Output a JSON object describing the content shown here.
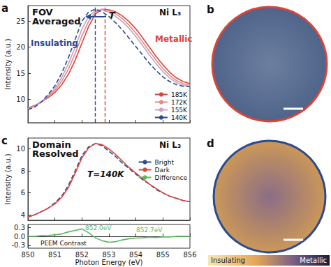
{
  "chart_data": [
    {
      "type": "line",
      "title": "a",
      "ylabel": "Intensity (a.u.)",
      "x": [
        850,
        850.25,
        850.5,
        850.75,
        851,
        851.25,
        851.5,
        851.75,
        852,
        852.25,
        852.5,
        852.75,
        853,
        853.25,
        853.5,
        853.75,
        854,
        854.25,
        854.5,
        854.75,
        855,
        855.25,
        855.5,
        855.75,
        856
      ],
      "xlim": [
        850,
        856
      ],
      "xticks": [
        850,
        851,
        852,
        853,
        854,
        855,
        856
      ],
      "ylim": [
        5.5,
        28
      ],
      "yticks": [
        10,
        15,
        20,
        25
      ],
      "tick_labels": "y",
      "grid": false,
      "legend": "lower right",
      "series": [
        {
          "name": "185K",
          "color": "#d9453a",
          "line_style": "solid",
          "values": [
            8.3,
            8.8,
            9.5,
            10.3,
            11.3,
            12.8,
            14.8,
            17.5,
            20.8,
            24.0,
            26.4,
            27.3,
            27.2,
            26.8,
            26.0,
            24.9,
            23.5,
            21.8,
            20.0,
            18.2,
            16.6,
            15.2,
            14.1,
            13.4,
            13.0
          ]
        },
        {
          "name": "172K",
          "color": "#e98a86",
          "line_style": "solid",
          "values": [
            8.2,
            8.7,
            9.5,
            10.5,
            11.7,
            13.5,
            15.8,
            18.8,
            22.2,
            25.0,
            26.8,
            27.3,
            27.0,
            26.4,
            25.5,
            24.2,
            22.7,
            21.0,
            19.2,
            17.5,
            15.9,
            14.6,
            13.6,
            13.0,
            12.7
          ]
        },
        {
          "name": "155K",
          "color": "#c7a3c4",
          "line_style": "solid",
          "values": [
            8.1,
            8.6,
            9.5,
            10.7,
            12.1,
            14.2,
            16.8,
            20.0,
            23.5,
            25.9,
            27.1,
            27.2,
            26.7,
            25.9,
            24.9,
            23.6,
            22.0,
            20.3,
            18.5,
            16.8,
            15.3,
            14.1,
            13.2,
            12.7,
            12.5
          ]
        },
        {
          "name": "140K",
          "color": "#2b4a8f",
          "line_style": "dashed",
          "values": [
            8.0,
            8.5,
            9.5,
            10.9,
            12.6,
            15.0,
            18.0,
            21.5,
            25.0,
            26.8,
            27.3,
            26.8,
            25.9,
            24.7,
            23.3,
            21.7,
            20.1,
            18.5,
            16.9,
            15.5,
            14.3,
            13.4,
            12.8,
            12.5,
            12.4
          ]
        }
      ],
      "vlines": [
        {
          "x": 852.5,
          "color": "#2b4a8f"
        },
        {
          "x": 852.85,
          "color": "#d9453a"
        }
      ],
      "annotations": [
        "FOV Averaged",
        "T",
        "Insulating",
        "Metallic",
        "Ni L₃"
      ]
    },
    {
      "type": "line",
      "title": "c",
      "ylabel": "Intensity (a.u.)",
      "x": [
        850,
        850.25,
        850.5,
        850.75,
        851,
        851.25,
        851.5,
        851.75,
        852,
        852.25,
        852.5,
        852.75,
        853,
        853.25,
        853.5,
        853.75,
        854,
        854.25,
        854.5,
        854.75,
        855,
        855.25,
        855.5,
        855.75,
        856
      ],
      "xlim": [
        850,
        856
      ],
      "xticks": [
        850,
        851,
        852,
        853,
        854,
        855,
        856
      ],
      "ylim": [
        3.5,
        11
      ],
      "yticks": [
        4,
        6,
        8,
        10
      ],
      "tick_labels": "y",
      "grid": false,
      "legend": "center right",
      "series": [
        {
          "name": "Bright",
          "color": "#2b4a8f",
          "line_style": "dashed",
          "values": [
            3.8,
            4.0,
            4.3,
            4.6,
            5.1,
            5.7,
            6.7,
            8.0,
            9.4,
            10.2,
            10.5,
            10.3,
            9.8,
            9.3,
            8.7,
            8.2,
            7.7,
            7.2,
            6.8,
            6.3,
            6.0,
            5.7,
            5.5,
            5.3,
            5.2
          ]
        },
        {
          "name": "Dark",
          "color": "#d9453a",
          "line_style": "solid",
          "values": [
            3.8,
            4.0,
            4.3,
            4.6,
            5.0,
            5.6,
            6.5,
            7.8,
            9.2,
            10.1,
            10.5,
            10.4,
            10.0,
            9.5,
            8.9,
            8.3,
            7.8,
            7.3,
            6.8,
            6.4,
            6.0,
            5.7,
            5.5,
            5.3,
            5.2
          ]
        }
      ],
      "annotations": [
        "Domain Resolved",
        "T=140K",
        "Ni L₃"
      ]
    },
    {
      "type": "line",
      "xlabel": "Photon Energy (eV)",
      "x": [
        850,
        850.25,
        850.5,
        850.75,
        851,
        851.25,
        851.5,
        851.75,
        852,
        852.25,
        852.5,
        852.75,
        853,
        853.25,
        853.5,
        853.75,
        854,
        854.25,
        854.5,
        854.75,
        855,
        855.25,
        855.5,
        855.75,
        856
      ],
      "xlim": [
        850,
        856
      ],
      "xticks": [
        850,
        851,
        852,
        853,
        854,
        855,
        856
      ],
      "ylim": [
        -0.4,
        0.4
      ],
      "yticks": [
        -0.3,
        {
          "value": 0,
          "label": "0.0"
        },
        0.3
      ],
      "grid": false,
      "series": [
        {
          "name": "Difference",
          "color": "#5cb85c",
          "line_style": "solid",
          "values": [
            0.0,
            0.0,
            0.02,
            0.03,
            0.05,
            0.08,
            0.15,
            0.2,
            0.25,
            0.12,
            -0.05,
            -0.15,
            -0.2,
            -0.18,
            -0.12,
            -0.08,
            -0.06,
            -0.05,
            -0.03,
            -0.04,
            -0.02,
            -0.02,
            0.0,
            0.0,
            0.0
          ]
        }
      ],
      "annotations": [
        "852.0eV",
        "852.7eV",
        "PEEM Contrast"
      ]
    }
  ],
  "images": [
    {
      "label": "b",
      "color": "#d9453a"
    },
    {
      "label": "d",
      "color": "#2b4a8f"
    }
  ],
  "colorbar_labels": [
    "Insulating",
    "Metallic"
  ]
}
